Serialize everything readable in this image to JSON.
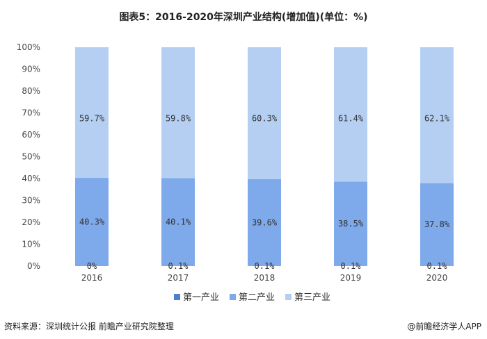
{
  "title": "图表5：2016-2020年深圳产业结构(增加值)(单位：%)",
  "source": "资料来源：深圳统计公报 前瞻产业研究院整理",
  "brand": "@前瞻经济学人APP",
  "colors": {
    "primary": "#4e7fd0",
    "secondary": "#7ea9ea",
    "tertiary": "#b5cff3"
  },
  "chart_data": {
    "type": "bar",
    "stacked": true,
    "categories": [
      "2016",
      "2017",
      "2018",
      "2019",
      "2020"
    ],
    "series": [
      {
        "name": "第一产业",
        "values": [
          0,
          0.1,
          0.1,
          0.1,
          0.1
        ],
        "labels": [
          "0%",
          "0.1%",
          "0.1%",
          "0.1%",
          "0.1%"
        ]
      },
      {
        "name": "第二产业",
        "values": [
          40.3,
          40.1,
          39.6,
          38.5,
          37.8
        ],
        "labels": [
          "40.3%",
          "40.1%",
          "39.6%",
          "38.5%",
          "37.8%"
        ]
      },
      {
        "name": "第三产业",
        "values": [
          59.7,
          59.8,
          60.3,
          61.4,
          62.1
        ],
        "labels": [
          "59.7%",
          "59.8%",
          "60.3%",
          "61.4%",
          "62.1%"
        ]
      }
    ],
    "ylim": [
      0,
      100
    ],
    "yticks": [
      "0%",
      "10%",
      "20%",
      "30%",
      "40%",
      "50%",
      "60%",
      "70%",
      "80%",
      "90%",
      "100%"
    ],
    "legend_position": "bottom",
    "grid": false
  }
}
